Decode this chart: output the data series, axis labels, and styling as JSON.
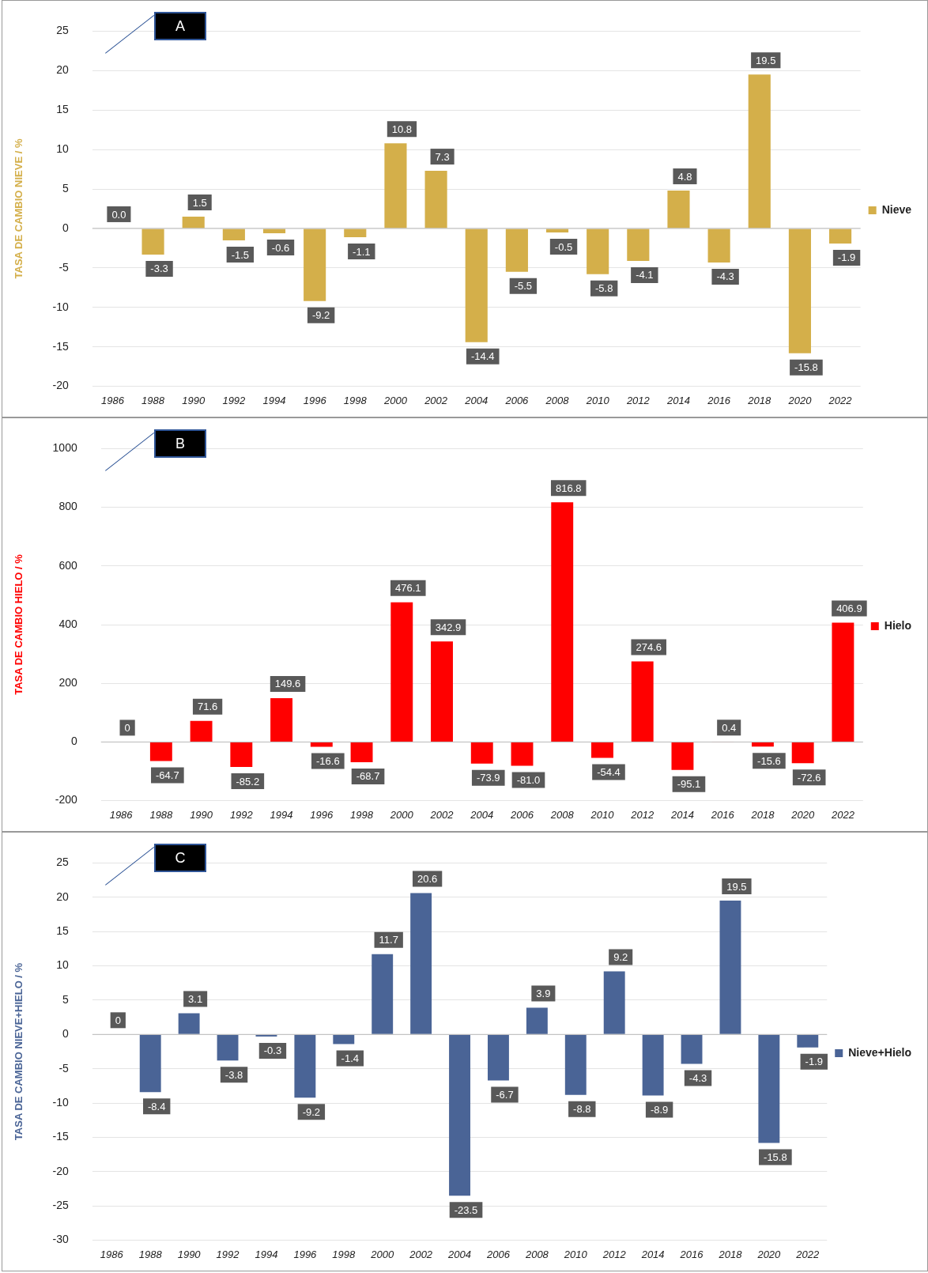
{
  "chart_data": [
    {
      "type": "bar",
      "annotations": [
        "A"
      ],
      "ylabel": "TASA DE CAMBIO NIEVE / %",
      "categories": [
        "1986",
        "1988",
        "1990",
        "1992",
        "1994",
        "1996",
        "1998",
        "2000",
        "2002",
        "2004",
        "2006",
        "2008",
        "2010",
        "2012",
        "2014",
        "2016",
        "2018",
        "2020",
        "2022"
      ],
      "series": [
        {
          "name": "Nieve",
          "color": "#d4af4a",
          "values": [
            0,
            -3.3,
            1.5,
            -1.5,
            -0.6,
            -9.2,
            -1.1,
            10.8,
            7.3,
            -14.4,
            -5.5,
            -0.5,
            -5.8,
            -4.1,
            4.8,
            -4.3,
            19.5,
            -15.8,
            -1.9
          ],
          "value_labels": [
            "0.0",
            "-3.3",
            "1.5",
            "-1.5",
            "-0.6",
            "-9.2",
            "-1.1",
            "10.8",
            "7.3",
            "-14.4",
            "-5.5",
            "-0.5",
            "-5.8",
            "-4.1",
            "4.8",
            "-4.3",
            "19.5",
            "-15.8",
            "-1.9"
          ]
        }
      ],
      "ylim": [
        -20,
        25
      ],
      "yticks": [
        -20,
        -15,
        -10,
        -5,
        0,
        5,
        10,
        15,
        20,
        25
      ],
      "grid": "y",
      "legend": "right"
    },
    {
      "type": "bar",
      "annotations": [
        "B"
      ],
      "ylabel": "TASA DE CAMBIO HIELO / %",
      "categories": [
        "1986",
        "1988",
        "1990",
        "1992",
        "1994",
        "1996",
        "1998",
        "2000",
        "2002",
        "2004",
        "2006",
        "2008",
        "2010",
        "2012",
        "2014",
        "2016",
        "2018",
        "2020",
        "2022"
      ],
      "series": [
        {
          "name": "Hielo",
          "color": "#ff0000",
          "values": [
            0,
            -64.7,
            71.6,
            -85.2,
            149.6,
            -16.6,
            -68.7,
            476.1,
            342.9,
            -73.9,
            -81.0,
            816.8,
            -54.4,
            274.6,
            -95.1,
            0.4,
            -15.6,
            -72.6,
            406.9
          ],
          "value_labels": [
            "0",
            "-64.7",
            "71.6",
            "-85.2",
            "149.6",
            "-16.6",
            "-68.7",
            "476.1",
            "342.9",
            "-73.9",
            "-81.0",
            "816.8",
            "-54.4",
            "274.6",
            "-95.1",
            "0.4",
            "-15.6",
            "-72.6",
            "406.9"
          ]
        }
      ],
      "ylim": [
        -200,
        1000
      ],
      "yticks": [
        -200,
        0,
        200,
        400,
        600,
        800,
        1000
      ],
      "grid": "y",
      "legend": "right"
    },
    {
      "type": "bar",
      "annotations": [
        "C"
      ],
      "ylabel": "TASA DE CAMBIO NIEVE+HIELO / %",
      "categories": [
        "1986",
        "1988",
        "1990",
        "1992",
        "1994",
        "1996",
        "1998",
        "2000",
        "2002",
        "2004",
        "2006",
        "2008",
        "2010",
        "2012",
        "2014",
        "2016",
        "2018",
        "2020",
        "2022"
      ],
      "series": [
        {
          "name": "Nieve+Hielo",
          "color": "#4a6496",
          "values": [
            0,
            -8.4,
            3.1,
            -3.8,
            -0.3,
            -9.2,
            -1.4,
            11.7,
            20.6,
            -23.5,
            -6.7,
            3.9,
            -8.8,
            9.2,
            -8.9,
            -4.3,
            19.5,
            -15.8,
            -1.9
          ],
          "value_labels": [
            "0",
            "-8.4",
            "3.1",
            "-3.8",
            "-0.3",
            "-9.2",
            "-1.4",
            "11.7",
            "20.6",
            "-23.5",
            "-6.7",
            "3.9",
            "-8.8",
            "9.2",
            "-8.9",
            "-4.3",
            "19.5",
            "-15.8",
            "-1.9"
          ]
        }
      ],
      "ylim": [
        -30,
        25
      ],
      "yticks": [
        -30,
        -25,
        -20,
        -15,
        -10,
        -5,
        0,
        5,
        10,
        15,
        20,
        25
      ],
      "grid": "y",
      "legend": "right"
    }
  ]
}
